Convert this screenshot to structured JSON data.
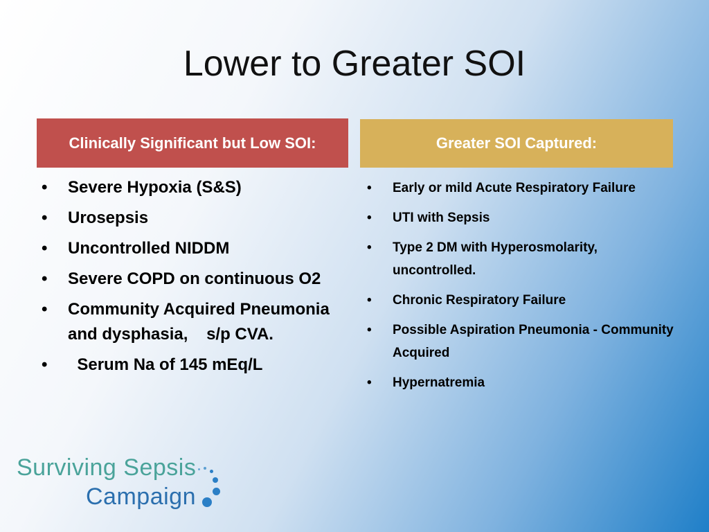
{
  "slide": {
    "title": "Lower to Greater SOI"
  },
  "left_column": {
    "header": "Clinically Significant but Low SOI:",
    "header_color": "#c0504d",
    "items": [
      "Severe Hypoxia (S&S)",
      "Urosepsis",
      "Uncontrolled NIDDM",
      "Severe COPD on continuous O2",
      "Community Acquired Pneumonia and dysphasia,    s/p CVA.",
      "  Serum Na of 145 mEq/L"
    ]
  },
  "right_column": {
    "header": "Greater SOI Captured:",
    "header_color": "#d7b15a",
    "items": [
      "Early or mild Acute Respiratory Failure",
      "UTI with Sepsis",
      "Type 2 DM with Hyperosmolarity, uncontrolled.",
      "Chronic Respiratory Failure",
      "Possible Aspiration Pneumonia - Community Acquired",
      "Hypernatremia"
    ]
  },
  "bullet_glyph": "•",
  "logo": {
    "line1": "Surviving Sepsis",
    "line2": "Campaign"
  }
}
